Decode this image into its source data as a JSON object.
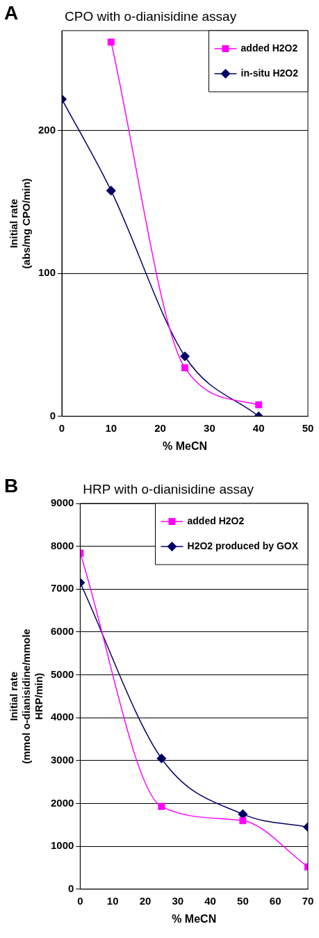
{
  "chart_data": [
    {
      "type": "line",
      "title": "CPO with o-dianisidine assay",
      "xlabel": "% MeCN",
      "ylabel": "Initial rate\n(abs/mg CPO/min)",
      "annotations": [
        "A"
      ],
      "xlim": [
        0,
        50
      ],
      "xticks": [
        0,
        10,
        20,
        30,
        40,
        50
      ],
      "ylim": [
        0,
        270
      ],
      "yticks": [
        0,
        100,
        200
      ],
      "grid": "y",
      "legend": "top right",
      "series": [
        {
          "name": "added H2O2",
          "color": "#ff00ff",
          "marker": "square",
          "x": [
            10,
            25,
            40
          ],
          "values": [
            262,
            34,
            8
          ]
        },
        {
          "name": "in-situ H2O2",
          "color": "#000066",
          "marker": "diamond",
          "x": [
            0,
            10,
            25,
            40
          ],
          "values": [
            222,
            158,
            42,
            0
          ]
        }
      ]
    },
    {
      "type": "line",
      "title": "HRP with o-dianisidine assay",
      "xlabel": "% MeCN",
      "ylabel": "Initial rate\n(mmol o-dianisidine/mmole\nHRP/min)",
      "annotations": [
        "B"
      ],
      "xlim": [
        0,
        70
      ],
      "xticks": [
        0,
        10,
        20,
        30,
        40,
        50,
        60,
        70
      ],
      "ylim": [
        0,
        9000
      ],
      "yticks": [
        0,
        1000,
        2000,
        3000,
        4000,
        5000,
        6000,
        7000,
        8000,
        9000
      ],
      "grid": "y",
      "legend": "top right",
      "series": [
        {
          "name": "added H2O2",
          "color": "#ff00ff",
          "marker": "square",
          "x": [
            0,
            25,
            50,
            70
          ],
          "values": [
            7840,
            1930,
            1600,
            520
          ]
        },
        {
          "name": "H2O2 produced by GOX",
          "color": "#000066",
          "marker": "diamond",
          "x": [
            0,
            25,
            50,
            70
          ],
          "values": [
            7150,
            3050,
            1750,
            1450
          ]
        }
      ]
    }
  ]
}
